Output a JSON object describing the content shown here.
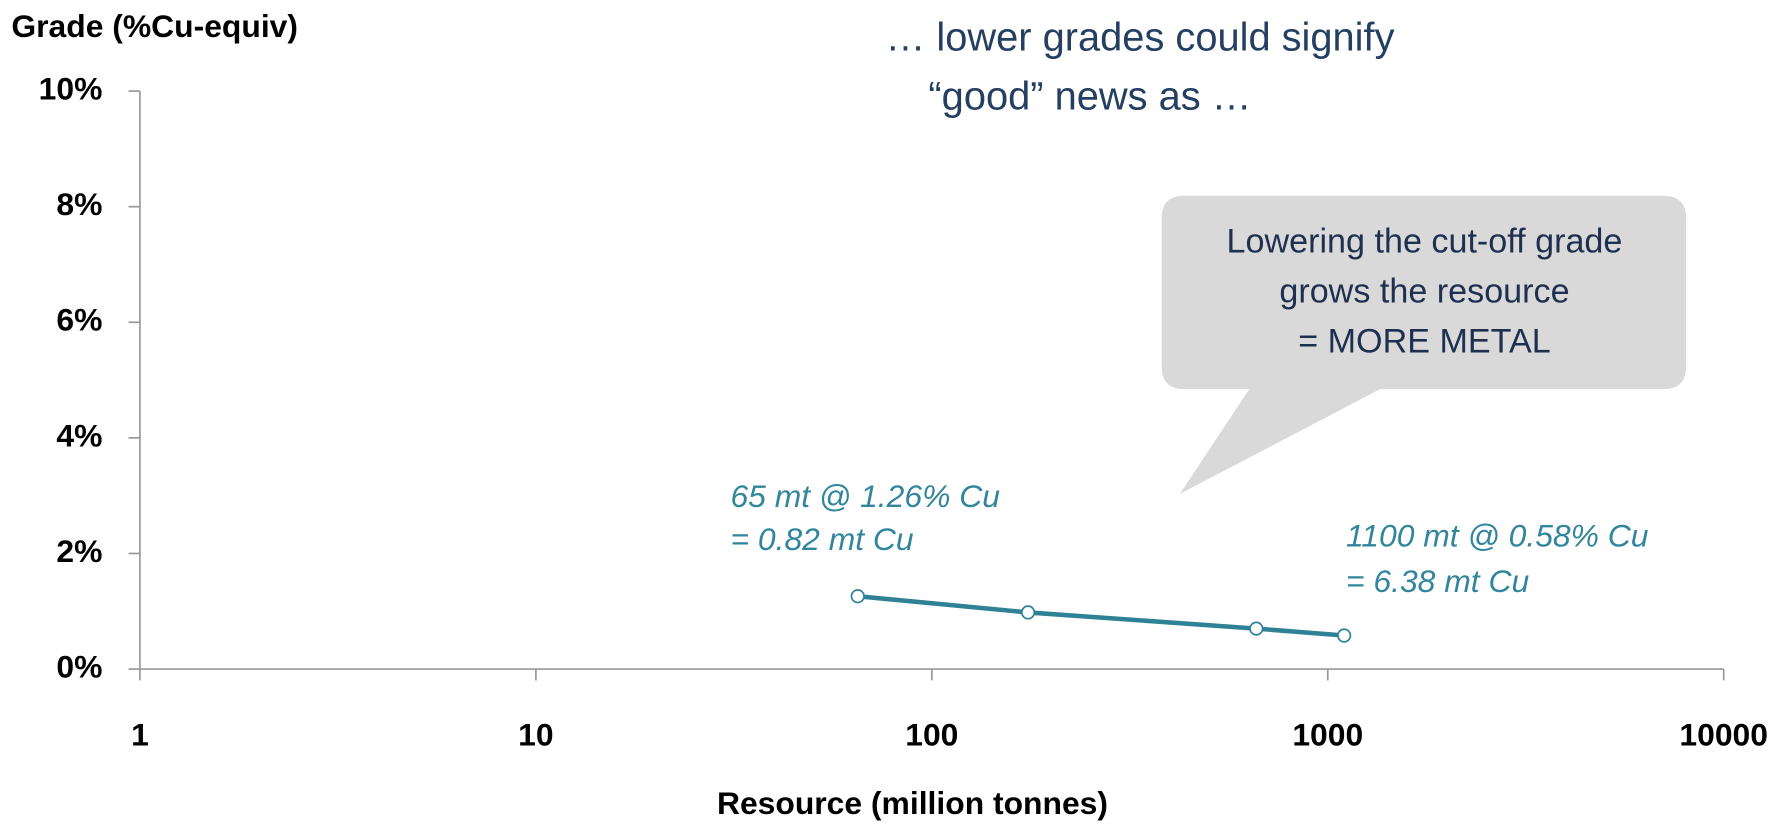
{
  "chart_data": {
    "type": "line",
    "y_label": "Grade (%Cu-equiv)",
    "x_label": "Resource (million tonnes)",
    "x": [
      65,
      175,
      660,
      1100
    ],
    "values": [
      1.26,
      0.98,
      0.7,
      0.58
    ],
    "color": "#2f8296",
    "xlim": [
      1,
      10000
    ],
    "xticks": [
      1,
      10,
      100,
      1000,
      10000
    ],
    "xscale": "log",
    "ylim": [
      0,
      10
    ],
    "yticks": [
      {
        "value": 0,
        "label": "0%"
      },
      {
        "value": 2,
        "label": "2%"
      },
      {
        "value": 4,
        "label": "4%"
      },
      {
        "value": 6,
        "label": "6%"
      },
      {
        "value": 8,
        "label": "8%"
      },
      {
        "value": 10,
        "label": "10%"
      }
    ],
    "annotations": {
      "header": [
        "… lower grades could signify",
        "“good” news as …"
      ],
      "callout": [
        "Lowering the cut-off grade",
        "grows the resource",
        "= MORE METAL"
      ],
      "first_point": [
        "65 mt @ 1.26% Cu",
        "= 0.82 mt Cu"
      ],
      "last_point": [
        "1100 mt @ 0.58% Cu",
        "= 6.38 mt Cu"
      ]
    }
  }
}
